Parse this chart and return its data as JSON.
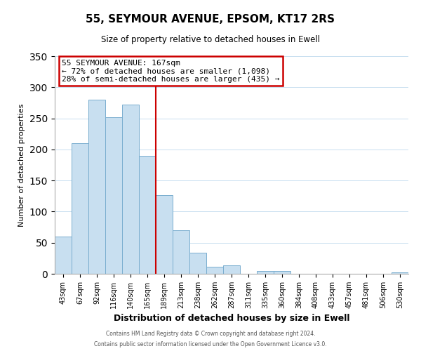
{
  "title": "55, SEYMOUR AVENUE, EPSOM, KT17 2RS",
  "subtitle": "Size of property relative to detached houses in Ewell",
  "xlabel": "Distribution of detached houses by size in Ewell",
  "ylabel": "Number of detached properties",
  "bar_labels": [
    "43sqm",
    "67sqm",
    "92sqm",
    "116sqm",
    "140sqm",
    "165sqm",
    "189sqm",
    "213sqm",
    "238sqm",
    "262sqm",
    "287sqm",
    "311sqm",
    "335sqm",
    "360sqm",
    "384sqm",
    "408sqm",
    "433sqm",
    "457sqm",
    "481sqm",
    "506sqm",
    "530sqm"
  ],
  "bar_values": [
    60,
    210,
    280,
    252,
    272,
    190,
    127,
    70,
    34,
    11,
    14,
    0,
    5,
    4,
    0,
    0,
    0,
    0,
    0,
    0,
    2
  ],
  "bar_color": "#c8dff0",
  "bar_edge_color": "#7aaecf",
  "property_line_index": 5,
  "annotation_title": "55 SEYMOUR AVENUE: 167sqm",
  "annotation_line1": "← 72% of detached houses are smaller (1,098)",
  "annotation_line2": "28% of semi-detached houses are larger (435) →",
  "annotation_box_color": "#ffffff",
  "annotation_box_edge": "#cc0000",
  "vline_color": "#cc0000",
  "ylim": [
    0,
    350
  ],
  "footnote1": "Contains HM Land Registry data © Crown copyright and database right 2024.",
  "footnote2": "Contains public sector information licensed under the Open Government Licence v3.0."
}
